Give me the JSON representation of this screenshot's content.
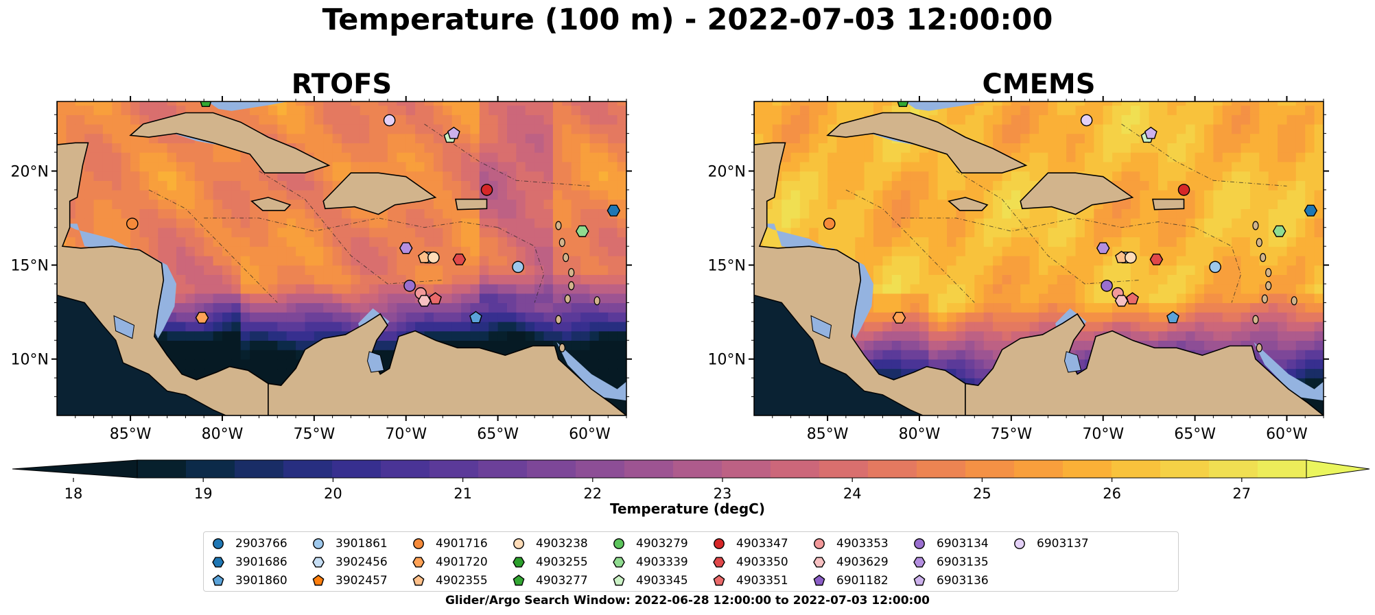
{
  "figure": {
    "title": "Temperature (100 m) - 2022-07-03 12:00:00",
    "window_text": "Glider/Argo Search Window: 2022-06-28 12:00:00 to 2022-07-03 12:00:00"
  },
  "panels": [
    {
      "title": "RTOFS",
      "palette": "rtofs"
    },
    {
      "title": "CMEMS",
      "palette": "cmems"
    }
  ],
  "map": {
    "lon_range": [
      -89,
      -58
    ],
    "lat_range": [
      7,
      23.7
    ],
    "lon_ticks": [
      "85°W",
      "80°W",
      "75°W",
      "70°W",
      "65°W",
      "60°W"
    ],
    "lat_ticks": [
      "10°N",
      "15°N",
      "20°N"
    ],
    "land_color": "#d2b48c",
    "shelf_color": "#94b3e0",
    "pacific_color": "#0a2233"
  },
  "colorbar": {
    "label": "Temperature (degC)",
    "min": 18,
    "max": 27.5,
    "ticks": [
      "18",
      "19",
      "20",
      "21",
      "22",
      "23",
      "24",
      "25",
      "26",
      "27"
    ],
    "extend": "both",
    "colors": [
      "#07202d",
      "#0c2a49",
      "#192d66",
      "#272e80",
      "#372f8f",
      "#4a3496",
      "#5b3a99",
      "#6c4099",
      "#7d4798",
      "#8d4e96",
      "#9d5492",
      "#ae5b8c",
      "#bd6184",
      "#cc677a",
      "#d96f6e",
      "#e47960",
      "#ed8452",
      "#f49145",
      "#f89f3c",
      "#fab037",
      "#f8c23c",
      "#f5d146",
      "#f0df52",
      "#eded5a"
    ],
    "under_color": "#061a24",
    "over_color": "#eaf55e"
  },
  "floats": [
    {
      "id": "2903766",
      "marker": "circle",
      "color": "#1f77b4",
      "lon": null,
      "lat": null
    },
    {
      "id": "3901686",
      "marker": "hexagon",
      "color": "#1f77b4",
      "lon": -58.7,
      "lat": 17.9
    },
    {
      "id": "3901860",
      "marker": "pentagon",
      "color": "#5ba3d9",
      "lon": -66.2,
      "lat": 12.2
    },
    {
      "id": "3901861",
      "marker": "circle",
      "color": "#9ec8ec",
      "lon": -63.9,
      "lat": 14.9
    },
    {
      "id": "3902456",
      "marker": "hexagon",
      "color": "#c6def4",
      "lon": -68.8,
      "lat": 15.4
    },
    {
      "id": "3902457",
      "marker": "pentagon",
      "color": "#ff7f0e",
      "lon": null,
      "lat": null
    },
    {
      "id": "4901716",
      "marker": "circle",
      "color": "#f58a3a",
      "lon": -84.9,
      "lat": 17.2
    },
    {
      "id": "4901720",
      "marker": "hexagon",
      "color": "#ffa256",
      "lon": -81.1,
      "lat": 12.2
    },
    {
      "id": "4902355",
      "marker": "pentagon",
      "color": "#ffc08a",
      "lon": -69.0,
      "lat": 15.4
    },
    {
      "id": "4903238",
      "marker": "circle",
      "color": "#ffdcb8",
      "lon": -68.5,
      "lat": 15.4
    },
    {
      "id": "4903255",
      "marker": "hexagon",
      "color": "#2ca02c",
      "lon": null,
      "lat": null
    },
    {
      "id": "4903277",
      "marker": "pentagon",
      "color": "#33a733",
      "lon": -80.9,
      "lat": 23.7
    },
    {
      "id": "4903279",
      "marker": "circle",
      "color": "#5cc45c",
      "lon": null,
      "lat": null
    },
    {
      "id": "4903339",
      "marker": "hexagon",
      "color": "#90dc90",
      "lon": -60.4,
      "lat": 16.8
    },
    {
      "id": "4903345",
      "marker": "pentagon",
      "color": "#cbf2c6",
      "lon": -67.6,
      "lat": 21.8
    },
    {
      "id": "4903347",
      "marker": "circle",
      "color": "#d62728",
      "lon": -65.6,
      "lat": 19.0
    },
    {
      "id": "4903350",
      "marker": "hexagon",
      "color": "#e0484a",
      "lon": -67.1,
      "lat": 15.3
    },
    {
      "id": "4903351",
      "marker": "pentagon",
      "color": "#ea6a6a",
      "lon": -68.4,
      "lat": 13.2
    },
    {
      "id": "4903353",
      "marker": "circle",
      "color": "#f2999a",
      "lon": -69.2,
      "lat": 13.5
    },
    {
      "id": "4903629",
      "marker": "hexagon",
      "color": "#f7c1c2",
      "lon": -69.0,
      "lat": 13.1
    },
    {
      "id": "6901182",
      "marker": "pentagon",
      "color": "#8b5ec6",
      "lon": null,
      "lat": null
    },
    {
      "id": "6903134",
      "marker": "circle",
      "color": "#9a6fcf",
      "lon": -69.8,
      "lat": 13.9
    },
    {
      "id": "6903135",
      "marker": "hexagon",
      "color": "#b48fe0",
      "lon": -70.0,
      "lat": 15.9
    },
    {
      "id": "6903136",
      "marker": "pentagon",
      "color": "#ccb1ec",
      "lon": -67.4,
      "lat": 22.0
    },
    {
      "id": "6903137",
      "marker": "circle",
      "color": "#e4d1f7",
      "lon": -70.9,
      "lat": 22.7
    }
  ]
}
